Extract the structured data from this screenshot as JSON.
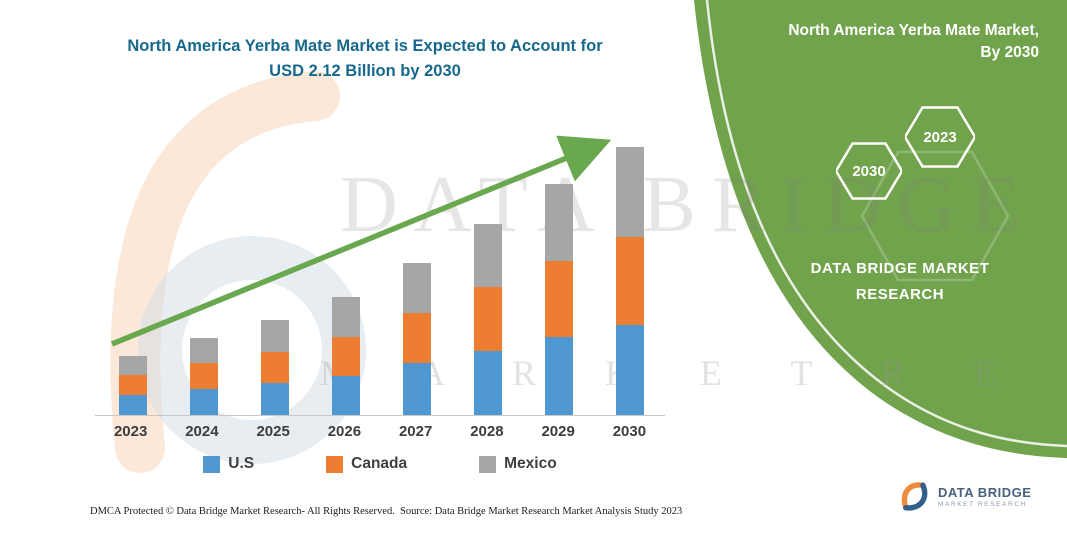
{
  "title": {
    "line1": "North America Yerba Mate Market is Expected to Account for",
    "line2": "USD 2.12 Billion by 2030"
  },
  "colors": {
    "title_teal": "#16698d",
    "panel_green": "#71a24c",
    "arrow_green": "#69a84e",
    "us_blue": "#4f97d0",
    "canada_orange": "#ed7d31",
    "mexico_gray": "#a6a6a6"
  },
  "chart_data": {
    "type": "bar",
    "stacked": true,
    "title": "North America Yerba Mate Market is Expected to Account for USD 2.12 Billion by 2030",
    "unit": "USD Billion",
    "categories": [
      "2023",
      "2024",
      "2025",
      "2026",
      "2027",
      "2028",
      "2029",
      "2030"
    ],
    "series": [
      {
        "name": "U.S",
        "color": "#4f97d0",
        "values": [
          0.16,
          0.21,
          0.25,
          0.31,
          0.41,
          0.51,
          0.62,
          0.71
        ]
      },
      {
        "name": "Canada",
        "color": "#ed7d31",
        "values": [
          0.16,
          0.2,
          0.25,
          0.31,
          0.4,
          0.5,
          0.6,
          0.7
        ]
      },
      {
        "name": "Mexico",
        "color": "#a6a6a6",
        "values": [
          0.15,
          0.2,
          0.25,
          0.31,
          0.39,
          0.5,
          0.61,
          0.71
        ]
      }
    ],
    "totals": [
      0.47,
      0.61,
      0.75,
      0.93,
      1.2,
      1.51,
      1.83,
      2.12
    ],
    "ylim": [
      0,
      2.2
    ],
    "legend_position": "bottom",
    "grid": false,
    "trend_arrow": true
  },
  "side_panel": {
    "heading_line1": "North America Yerba Mate Market,",
    "heading_line2": "By 2030",
    "hexagons": [
      "2030",
      "2023"
    ],
    "brand_line1": "DATA BRIDGE MARKET",
    "brand_line2": "RESEARCH"
  },
  "watermark": {
    "line1": "DATA BRIDGE",
    "line2": "M A R K E T   R E S E A R C H"
  },
  "footer": {
    "dmca": "DMCA Protected © Data Bridge Market Research-  All Rights Reserved.",
    "source": "Source: Data Bridge Market Research  Market Analysis Study 2023"
  },
  "logo": {
    "title": "DATA BRIDGE",
    "subtitle": "MARKET RESEARCH"
  }
}
